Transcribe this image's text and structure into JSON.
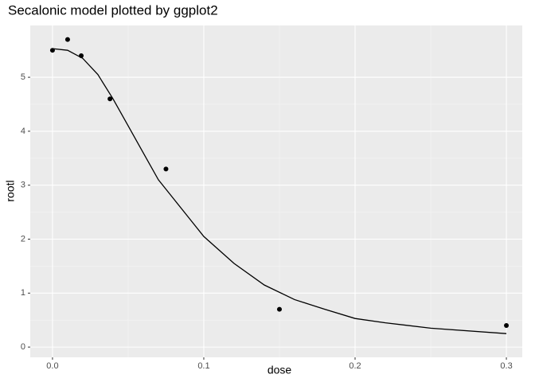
{
  "chart_data": {
    "type": "scatter",
    "title": "Secalonic model plotted by ggplot2",
    "x_label": "dose",
    "y_label": "rootl",
    "xlim": [
      -0.0147,
      0.3105
    ],
    "ylim": [
      -0.19,
      5.96
    ],
    "xticks": [
      {
        "value": 0,
        "label": "0.0"
      },
      {
        "value": 0.1,
        "label": "0.1"
      },
      {
        "value": 0.2,
        "label": "0.2"
      },
      {
        "value": 0.3,
        "label": "0.3"
      }
    ],
    "yticks": [
      0,
      1,
      2,
      3,
      4,
      5
    ],
    "grid": true,
    "series": [
      {
        "type": "scatter",
        "color": "#000000",
        "x": [
          0,
          0.01,
          0.019,
          0.038,
          0.075,
          0.15,
          0.3
        ],
        "values": [
          5.5,
          5.7,
          5.4,
          4.6,
          3.3,
          0.7,
          0.4
        ]
      },
      {
        "type": "line",
        "color": "#000000",
        "x": [
          0,
          0.01,
          0.02,
          0.03,
          0.04,
          0.05,
          0.06,
          0.07,
          0.08,
          0.09,
          0.1,
          0.12,
          0.14,
          0.16,
          0.18,
          0.2,
          0.22,
          0.25,
          0.3
        ],
        "values": [
          5.53,
          5.5,
          5.35,
          5.05,
          4.6,
          4.1,
          3.6,
          3.1,
          2.75,
          2.4,
          2.05,
          1.55,
          1.15,
          0.88,
          0.7,
          0.53,
          0.45,
          0.35,
          0.25
        ]
      }
    ]
  }
}
